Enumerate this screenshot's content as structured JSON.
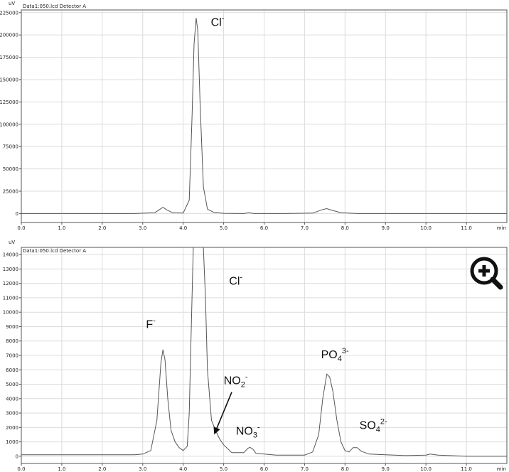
{
  "chart_data": [
    {
      "type": "line",
      "y_unit_label": "uV",
      "header": "Data1:050.lcd Detector A",
      "x_unit_label": "min",
      "xlim": [
        0.0,
        12.0
      ],
      "ylim": [
        -10000,
        228000
      ],
      "x_ticks": [
        0,
        1,
        2,
        3,
        4,
        5,
        6,
        7,
        8,
        9,
        10,
        11
      ],
      "x_tick_labels": [
        "0.0",
        "1.0",
        "2.0",
        "3.0",
        "4.0",
        "5.0",
        "6.0",
        "7.0",
        "8.0",
        "9.0",
        "10.0",
        "11.0"
      ],
      "y_ticks": [
        0,
        25000,
        50000,
        75000,
        100000,
        125000,
        150000,
        175000,
        200000,
        225000
      ],
      "y_tick_labels": [
        "0",
        "25000",
        "50000",
        "75000",
        "100000",
        "125000",
        "150000",
        "175000",
        "200000",
        "225000"
      ],
      "series": [
        {
          "x": [
            0,
            2.8,
            3.3,
            3.4,
            3.5,
            3.6,
            3.75,
            4.0,
            4.15,
            4.22,
            4.27,
            4.32,
            4.36,
            4.42,
            4.5,
            4.6,
            4.75,
            5.0,
            5.5,
            5.62,
            5.75,
            6.5,
            7.2,
            7.45,
            7.55,
            7.65,
            7.9,
            8.3,
            12
          ],
          "y": [
            0,
            0,
            1000,
            4000,
            7000,
            4000,
            800,
            600,
            15000,
            110000,
            190000,
            219000,
            205000,
            120000,
            30000,
            5000,
            1500,
            300,
            0,
            1000,
            0,
            0,
            500,
            4500,
            5500,
            4000,
            1000,
            0,
            0
          ]
        }
      ],
      "annotations": [
        {
          "base": "Cl",
          "sup": "-",
          "x": 4.85,
          "y": 210000
        }
      ]
    },
    {
      "type": "line",
      "y_unit_label": "uV",
      "header": "Data1:050.lcd Detector A",
      "x_unit_label": "min",
      "xlim": [
        0.0,
        12.0
      ],
      "ylim": [
        -500,
        14500
      ],
      "x_ticks": [
        0,
        1,
        2,
        3,
        4,
        5,
        6,
        7,
        8,
        9,
        10,
        11
      ],
      "x_tick_labels": [
        "0.0",
        "1.0",
        "2.0",
        "3.0",
        "4.0",
        "5.0",
        "6.0",
        "7.0",
        "8.0",
        "9.0",
        "10.0",
        "11.0"
      ],
      "y_ticks": [
        0,
        1000,
        2000,
        3000,
        4000,
        5000,
        6000,
        7000,
        8000,
        9000,
        10000,
        11000,
        12000,
        13000,
        14000
      ],
      "y_tick_labels": [
        "0",
        "1000",
        "2000",
        "3000",
        "4000",
        "5000",
        "6000",
        "7000",
        "8000",
        "9000",
        "10000",
        "11000",
        "12000",
        "13000",
        "14000"
      ],
      "series": [
        {
          "x": [
            0,
            2.8,
            3.0,
            3.2,
            3.35,
            3.45,
            3.5,
            3.55,
            3.62,
            3.7,
            3.8,
            3.9,
            4.0,
            4.1,
            4.15,
            4.2,
            4.25,
            4.3,
            4.4,
            4.5,
            4.55,
            4.6,
            4.7,
            4.8,
            4.9,
            5.0,
            5.2,
            5.5,
            5.6,
            5.65,
            5.72,
            5.8,
            6.0,
            6.3,
            7.0,
            7.2,
            7.35,
            7.45,
            7.55,
            7.62,
            7.7,
            7.8,
            7.9,
            8.0,
            8.1,
            8.2,
            8.3,
            8.4,
            8.6,
            9.0,
            9.5,
            10.0,
            10.1,
            10.3,
            11.0,
            12.0
          ],
          "y": [
            100,
            100,
            150,
            400,
            2500,
            6500,
            7400,
            6700,
            4000,
            1800,
            1000,
            600,
            400,
            700,
            3000,
            9000,
            14500,
            14500,
            14500,
            14500,
            11000,
            6000,
            2500,
            1800,
            1200,
            800,
            250,
            250,
            550,
            620,
            500,
            200,
            150,
            80,
            80,
            300,
            1500,
            4000,
            5700,
            5500,
            4500,
            2500,
            1000,
            400,
            300,
            600,
            600,
            350,
            150,
            100,
            50,
            80,
            150,
            80,
            0,
            0
          ]
        }
      ],
      "annotations": [
        {
          "base": "F",
          "sup": "-",
          "x": 3.2,
          "y": 8900
        },
        {
          "base": "Cl",
          "sup": "-",
          "x": 5.3,
          "y": 11900
        },
        {
          "base": "NO",
          "sub": "2",
          "sup": "-",
          "x": 5.3,
          "y": 5000
        },
        {
          "base": "NO",
          "sub": "3",
          "sup": "-",
          "x": 5.6,
          "y": 1500
        },
        {
          "base": "PO",
          "sub": "4",
          "sup": "3-",
          "x": 7.75,
          "y": 6800
        },
        {
          "base": "SO",
          "sub": "4",
          "sup": "2-",
          "x": 8.7,
          "y": 1900
        }
      ],
      "arrows": [
        {
          "from": [
            5.2,
            4450
          ],
          "to": [
            4.78,
            1600
          ]
        }
      ]
    }
  ],
  "zoom_icon": "zoom-in-icon"
}
